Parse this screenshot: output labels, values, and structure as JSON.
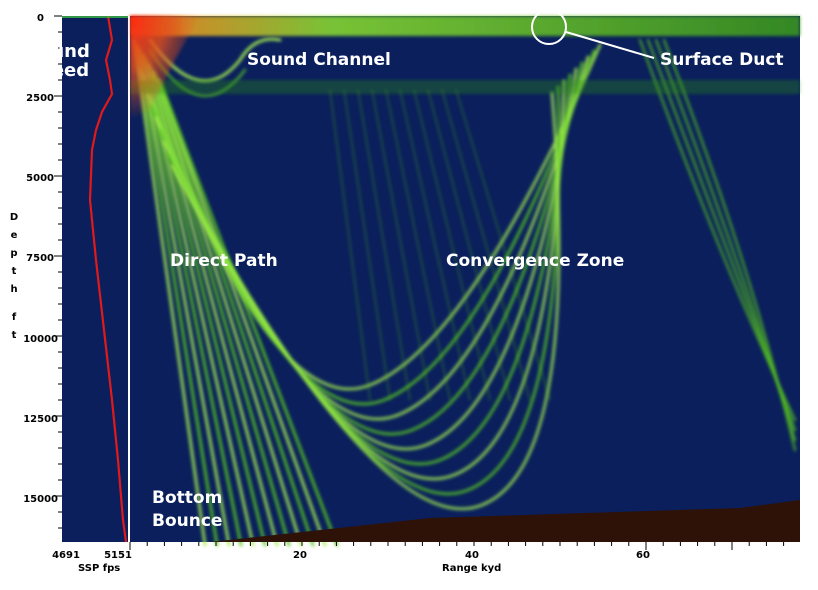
{
  "colors": {
    "background": "#0a1f5c",
    "ray": "#58c820",
    "ray_bright": "#a8f050",
    "surface_hot": "#e83010",
    "ssp_curve": "#e01a1a",
    "seabed": "#2e1208",
    "annotation": "#ffffff",
    "axis_text": "#000000"
  },
  "labels": {
    "sound_speed_line1": "Sound",
    "sound_speed_line2": "Speed",
    "sound_channel": "Sound Channel",
    "surface_duct": "Surface Duct",
    "direct_path": "Direct Path",
    "convergence_zone": "Convergence Zone",
    "bottom_bounce_line1": "Bottom",
    "bottom_bounce_line2": "Bounce"
  },
  "axes": {
    "depth": {
      "title_letters": [
        "D",
        "e",
        "p",
        "t",
        "h",
        "f",
        "t"
      ],
      "ticks": [
        "0",
        "2500",
        "5000",
        "7500",
        "10000",
        "12500",
        "15000"
      ]
    },
    "ssp": {
      "title": "SSP fps",
      "ticks": [
        "4691",
        "5151"
      ]
    },
    "range": {
      "title": "Range kyd",
      "ticks": [
        "20",
        "40",
        "60"
      ]
    }
  }
}
